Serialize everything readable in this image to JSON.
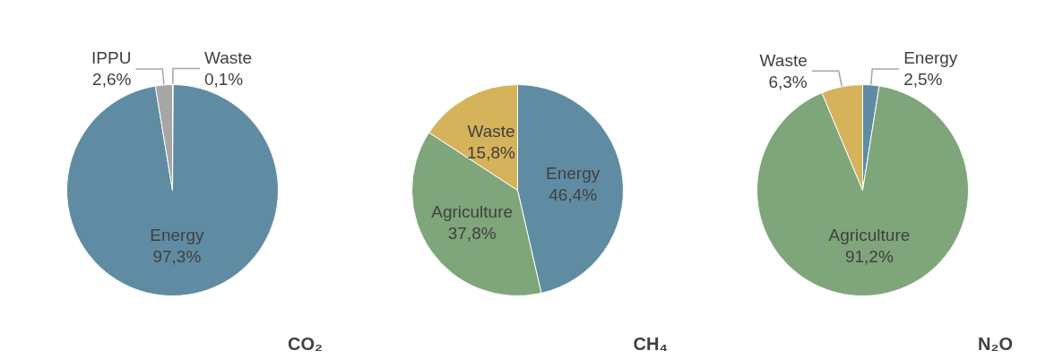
{
  "chart_data": [
    {
      "type": "pie",
      "title": "CO₂",
      "categories": [
        "Waste",
        "Energy",
        "IPPU"
      ],
      "values": [
        0.1,
        97.3,
        2.6
      ],
      "colors": [
        "#d4b35a",
        "#5f8ca3",
        "#a6a6a6"
      ],
      "value_labels": [
        "0,1%",
        "97,3%",
        "2,6%"
      ]
    },
    {
      "type": "pie",
      "title": "CH₄",
      "categories": [
        "Energy",
        "Agriculture",
        "Waste"
      ],
      "values": [
        46.4,
        37.8,
        15.8
      ],
      "colors": [
        "#5f8ca3",
        "#7fa57a",
        "#d4b35a"
      ],
      "value_labels": [
        "46,4%",
        "37,8%",
        "15,8%"
      ]
    },
    {
      "type": "pie",
      "title": "N₂O",
      "categories": [
        "Energy",
        "Agriculture",
        "Waste"
      ],
      "values": [
        2.5,
        91.2,
        6.3
      ],
      "colors": [
        "#5f8ca3",
        "#7fa57a",
        "#d4b35a"
      ],
      "value_labels": [
        "2,5%",
        "91,2%",
        "6,3%"
      ]
    }
  ]
}
